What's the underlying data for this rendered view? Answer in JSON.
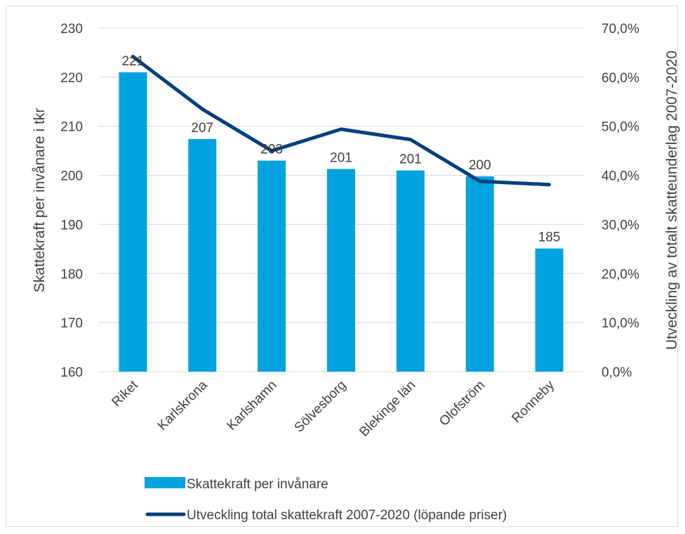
{
  "chart_data": {
    "type": "bar",
    "categories": [
      "Riket",
      "Karlskrona",
      "Karlshamn",
      "Sölvesborg",
      "Blekinge län",
      "Olofström",
      "Ronneby"
    ],
    "series": [
      {
        "name": "Skattekraft per invånare",
        "type": "bar",
        "axis": "left",
        "values": [
          221,
          207.4,
          203,
          201.3,
          201,
          199.8,
          185.1
        ],
        "labels": [
          "221",
          "207",
          "203",
          "201",
          "201",
          "200",
          "185"
        ]
      },
      {
        "name": "Utveckling total skattekraft 2007-2020 (löpande priser)",
        "type": "line",
        "axis": "right",
        "values": [
          64.2,
          53.5,
          45.0,
          49.4,
          47.3,
          38.8,
          38.1
        ]
      }
    ],
    "ylabel": "Skattekraft per invånare i tkr",
    "ylabel_right": "Utveckling av totalt skatteunderlag 2007-2020",
    "ylim": [
      160,
      230
    ],
    "y_ticks": [
      "160",
      "170",
      "180",
      "190",
      "200",
      "210",
      "220",
      "230"
    ],
    "ylim_right": [
      0,
      70
    ],
    "y_ticks_right": [
      "0,0%",
      "10,0%",
      "20,0%",
      "30,0%",
      "40,0%",
      "50,0%",
      "60,0%",
      "70,0%"
    ],
    "grid": true,
    "legend_position": "bottom",
    "colors": {
      "bar": "#00a2e0",
      "line": "#003f7d",
      "grid": "#d9d9d9",
      "text": "#404040"
    }
  }
}
